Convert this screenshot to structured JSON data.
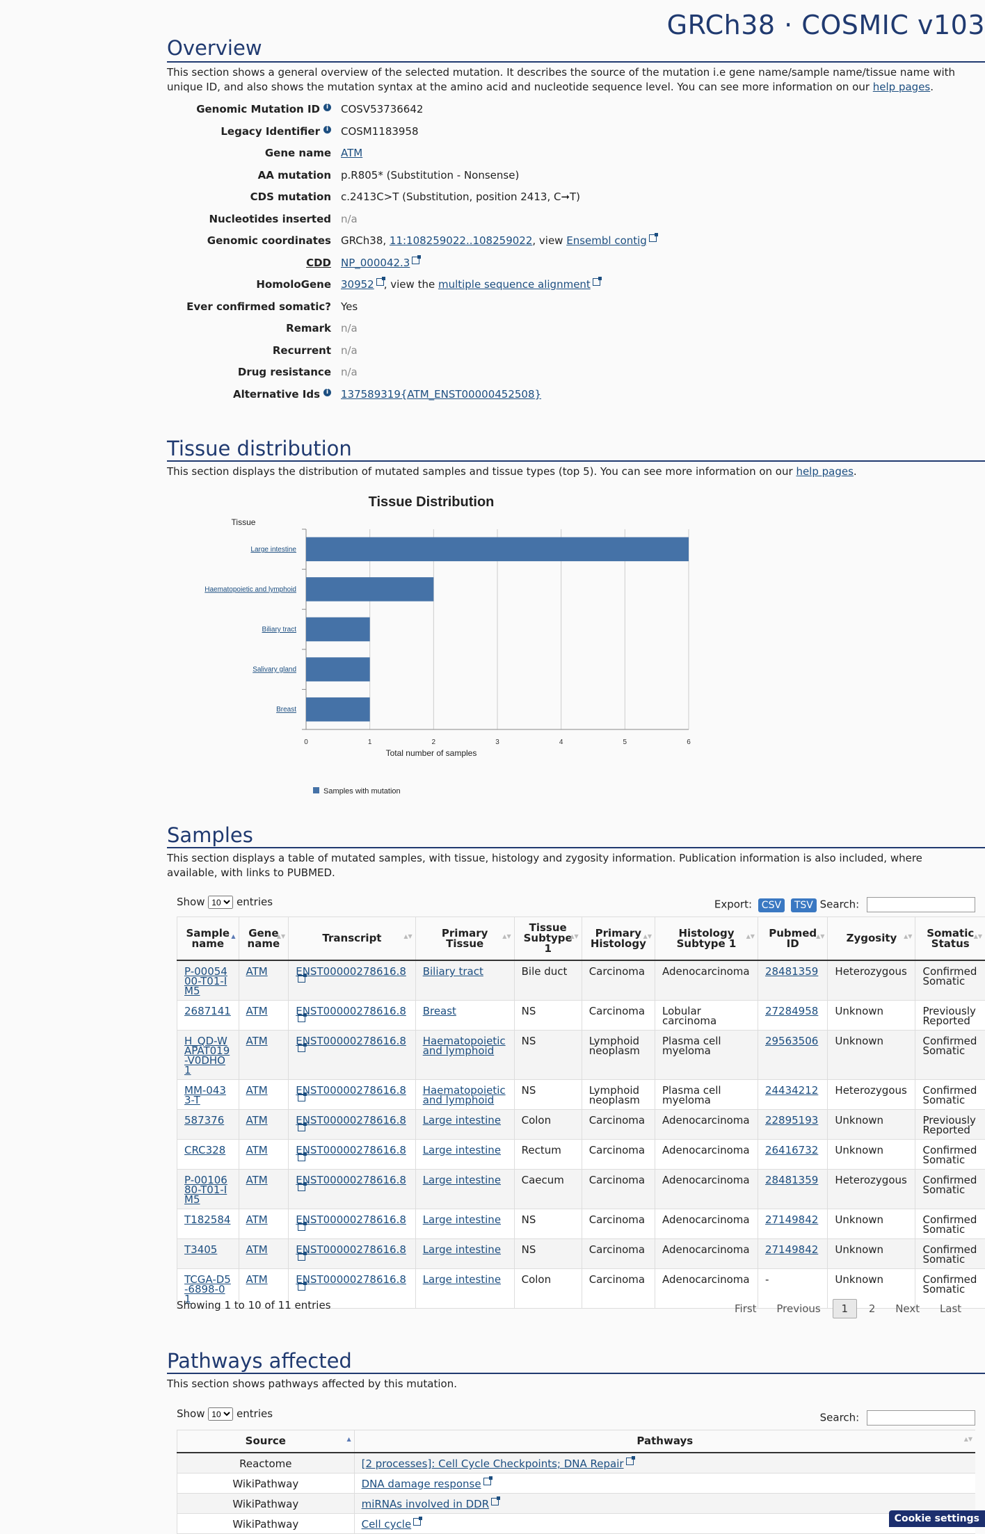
{
  "build_title": "GRCh38 · COSMIC v103",
  "overview": {
    "title": "Overview",
    "desc": "This section shows a general overview of the selected mutation. It describes the source of the mutation i.e gene name/sample name/tissue name with unique ID, and also shows the mutation syntax at the amino acid and nucleotide sequence level. You can see more information on our ",
    "help": "help pages",
    "fields": [
      {
        "label": "Genomic Mutation ID",
        "value": "COSV53736642"
      },
      {
        "label": "Legacy Identifier",
        "value": "COSM1183958"
      },
      {
        "label": "Gene name",
        "value": "ATM"
      },
      {
        "label": "AA mutation",
        "value": "p.R805* (Substitution - Nonsense)"
      },
      {
        "label": "CDS mutation",
        "value": "c.2413C>T (Substitution, position 2413, C➞T)"
      },
      {
        "label": "Nucleotides inserted",
        "value": "n/a"
      },
      {
        "label": "Genomic coordinates",
        "prefix": "GRCh38, ",
        "link": "11:108259022..108259022",
        "mid": ", view ",
        "link2": "Ensembl contig"
      },
      {
        "label": "CDD",
        "value": "NP_000042.3"
      },
      {
        "label": "HomoloGene",
        "link": "30952",
        "mid": ", view the ",
        "link2": "multiple sequence alignment"
      },
      {
        "label": "Ever confirmed somatic?",
        "value": "Yes"
      },
      {
        "label": "Remark",
        "value": "n/a"
      },
      {
        "label": "Recurrent",
        "value": "n/a"
      },
      {
        "label": "Drug resistance",
        "value": "n/a"
      },
      {
        "label": "Alternative Ids",
        "value": "137589319{ATM_ENST00000452508}"
      }
    ]
  },
  "tissue": {
    "title": "Tissue distribution",
    "desc": "This section displays the distribution of mutated samples and tissue types (top 5). You can see more information on our ",
    "help": "help pages"
  },
  "chart_data": {
    "type": "bar",
    "orientation": "horizontal",
    "title": "Tissue Distribution",
    "ylabel": "Tissue",
    "xlabel": "Total number of samples",
    "categories": [
      "Large intestine",
      "Haematopoietic and lymphoid",
      "Biliary tract",
      "Salivary gland",
      "Breast"
    ],
    "series": [
      {
        "name": "Samples with mutation",
        "values": [
          6,
          2,
          1,
          1,
          1
        ],
        "color": "#4572a7"
      }
    ],
    "xlim": [
      0,
      6
    ],
    "xticks": [
      "0",
      "1",
      "2",
      "3",
      "4",
      "5",
      "6"
    ],
    "grid": true,
    "legend": "bottom-left"
  },
  "samples": {
    "title": "Samples",
    "desc": "This section displays a table of mutated samples, with tissue, histology and zygosity information. Publication information is also included, where available, with links to PUBMED.",
    "show": "Show",
    "entries": "entries",
    "len_value": "10",
    "export_label": "Export:",
    "csv": "CSV",
    "tsv": "TSV",
    "search_label": "Search:",
    "columns": [
      "Sample name",
      "Gene name",
      "Transcript",
      "Primary Tissue",
      "Tissue Subtype 1",
      "Primary Histology",
      "Histology Subtype 1",
      "Pubmed ID",
      "Zygosity",
      "Somatic Status"
    ],
    "rows": [
      [
        "P-0005400-T01-IM5",
        "ATM",
        "ENST00000278616.8",
        "Biliary tract",
        "Bile duct",
        "Carcinoma",
        "Adenocarcinoma",
        "28481359",
        "Heterozygous",
        "Confirmed Somatic"
      ],
      [
        "2687141",
        "ATM",
        "ENST00000278616.8",
        "Breast",
        "NS",
        "Carcinoma",
        "Lobular carcinoma",
        "27284958",
        "Unknown",
        "Previously Reported"
      ],
      [
        "H_QD-WAPAT019-V0DHO1",
        "ATM",
        "ENST00000278616.8",
        "Haematopoietic and lymphoid",
        "NS",
        "Lymphoid neoplasm",
        "Plasma cell myeloma",
        "29563506",
        "Unknown",
        "Confirmed Somatic"
      ],
      [
        "MM-0433-T",
        "ATM",
        "ENST00000278616.8",
        "Haematopoietic and lymphoid",
        "NS",
        "Lymphoid neoplasm",
        "Plasma cell myeloma",
        "24434212",
        "Heterozygous",
        "Confirmed Somatic"
      ],
      [
        "587376",
        "ATM",
        "ENST00000278616.8",
        "Large intestine",
        "Colon",
        "Carcinoma",
        "Adenocarcinoma",
        "22895193",
        "Unknown",
        "Previously Reported"
      ],
      [
        "CRC328",
        "ATM",
        "ENST00000278616.8",
        "Large intestine",
        "Rectum",
        "Carcinoma",
        "Adenocarcinoma",
        "26416732",
        "Unknown",
        "Confirmed Somatic"
      ],
      [
        "P-0010680-T01-IM5",
        "ATM",
        "ENST00000278616.8",
        "Large intestine",
        "Caecum",
        "Carcinoma",
        "Adenocarcinoma",
        "28481359",
        "Heterozygous",
        "Confirmed Somatic"
      ],
      [
        "T182584",
        "ATM",
        "ENST00000278616.8",
        "Large intestine",
        "NS",
        "Carcinoma",
        "Adenocarcinoma",
        "27149842",
        "Unknown",
        "Confirmed Somatic"
      ],
      [
        "T3405",
        "ATM",
        "ENST00000278616.8",
        "Large intestine",
        "NS",
        "Carcinoma",
        "Adenocarcinoma",
        "27149842",
        "Unknown",
        "Confirmed Somatic"
      ],
      [
        "TCGA-D5-6898-01",
        "ATM",
        "ENST00000278616.8",
        "Large intestine",
        "Colon",
        "Carcinoma",
        "Adenocarcinoma",
        "-",
        "Unknown",
        "Confirmed Somatic"
      ]
    ],
    "info": "Showing 1 to 10 of 11 entries",
    "pager": {
      "first": "First",
      "previous": "Previous",
      "pages": [
        "1",
        "2"
      ],
      "next": "Next",
      "last": "Last"
    }
  },
  "pathways": {
    "title": "Pathways affected",
    "desc": "This section shows pathways affected by this mutation.",
    "show": "Show",
    "entries": "entries",
    "len_value": "10",
    "search_label": "Search:",
    "columns": [
      "Source",
      "Pathways"
    ],
    "rows": [
      [
        "Reactome",
        "[2 processes]: Cell Cycle Checkpoints; DNA Repair"
      ],
      [
        "WikiPathway",
        "DNA damage response"
      ],
      [
        "WikiPathway",
        "miRNAs involved in DDR"
      ],
      [
        "WikiPathway",
        "Cell cycle"
      ]
    ]
  },
  "cookie": "Cookie settings"
}
